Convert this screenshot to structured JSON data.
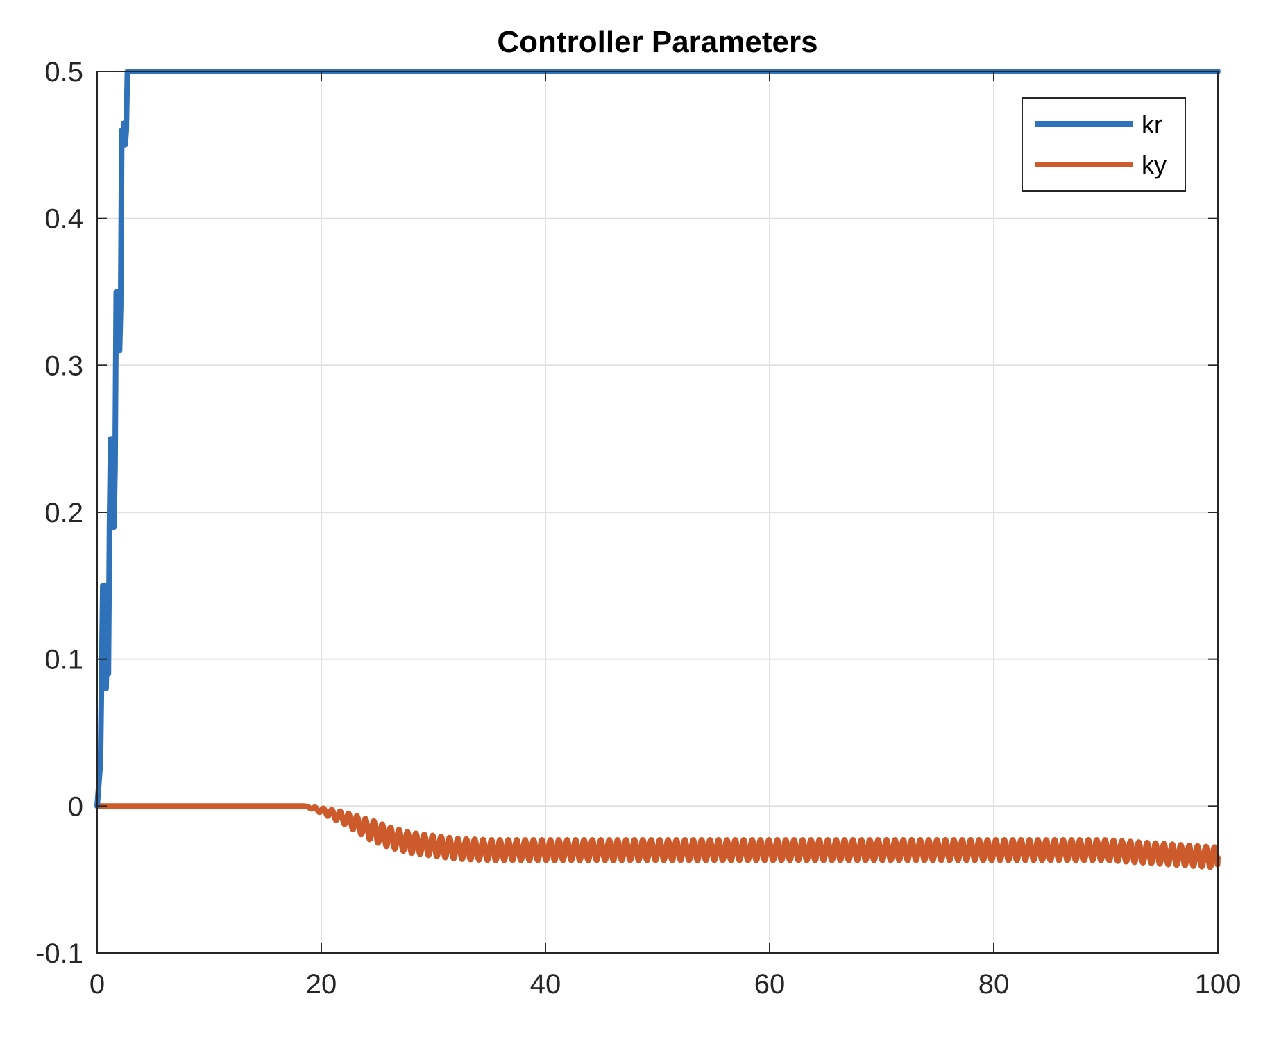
{
  "chart_data": {
    "type": "line",
    "title": "Controller Parameters",
    "xlabel": "",
    "ylabel": "",
    "xlim": [
      0,
      100
    ],
    "ylim": [
      -0.1,
      0.5
    ],
    "xticks": [
      0,
      20,
      40,
      60,
      80,
      100
    ],
    "xtick_labels": [
      "0",
      "20",
      "40",
      "60",
      "80",
      "100"
    ],
    "yticks": [
      -0.1,
      0,
      0.1,
      0.2,
      0.3,
      0.4,
      0.5
    ],
    "ytick_labels": [
      "-0.1",
      "0",
      "0.1",
      "0.2",
      "0.3",
      "0.4",
      "0.5"
    ],
    "grid": true,
    "legend_position": "top-right",
    "series": [
      {
        "name": "kr",
        "color": "#3072ba",
        "x": [
          0,
          0.3,
          0.5,
          0.6,
          0.7,
          0.8,
          0.9,
          1.0,
          1.1,
          1.2,
          1.3,
          1.4,
          1.5,
          1.6,
          1.7,
          1.8,
          1.9,
          2.0,
          2.1,
          2.2,
          2.3,
          2.4,
          2.5,
          2.6,
          2.7,
          2.8,
          2.9,
          3.0,
          3.1,
          3.2,
          3.3,
          3.4,
          3.5,
          100
        ],
        "y": [
          0,
          0.03,
          0.15,
          0.08,
          0.15,
          0.08,
          0.11,
          0.09,
          0.19,
          0.25,
          0.19,
          0.25,
          0.19,
          0.23,
          0.35,
          0.31,
          0.35,
          0.31,
          0.34,
          0.46,
          0.45,
          0.465,
          0.45,
          0.46,
          0.5,
          0.5,
          0.5,
          0.5,
          0.5,
          0.5,
          0.5,
          0.5,
          0.5,
          0.5
        ]
      },
      {
        "name": "ky",
        "color": "#cc5a2b",
        "x": [
          0,
          18.5,
          20,
          22,
          24,
          26,
          28,
          30,
          32,
          35,
          40,
          50,
          60,
          70,
          80,
          90,
          100
        ],
        "y": [
          0,
          0,
          -0.003,
          -0.008,
          -0.015,
          -0.021,
          -0.025,
          -0.027,
          -0.029,
          -0.03,
          -0.03,
          -0.03,
          -0.03,
          -0.03,
          -0.03,
          -0.03,
          -0.035
        ],
        "oscillation_amplitude": 0.007,
        "oscillation_period": 0.75,
        "oscillation_start": 18.5
      }
    ]
  }
}
